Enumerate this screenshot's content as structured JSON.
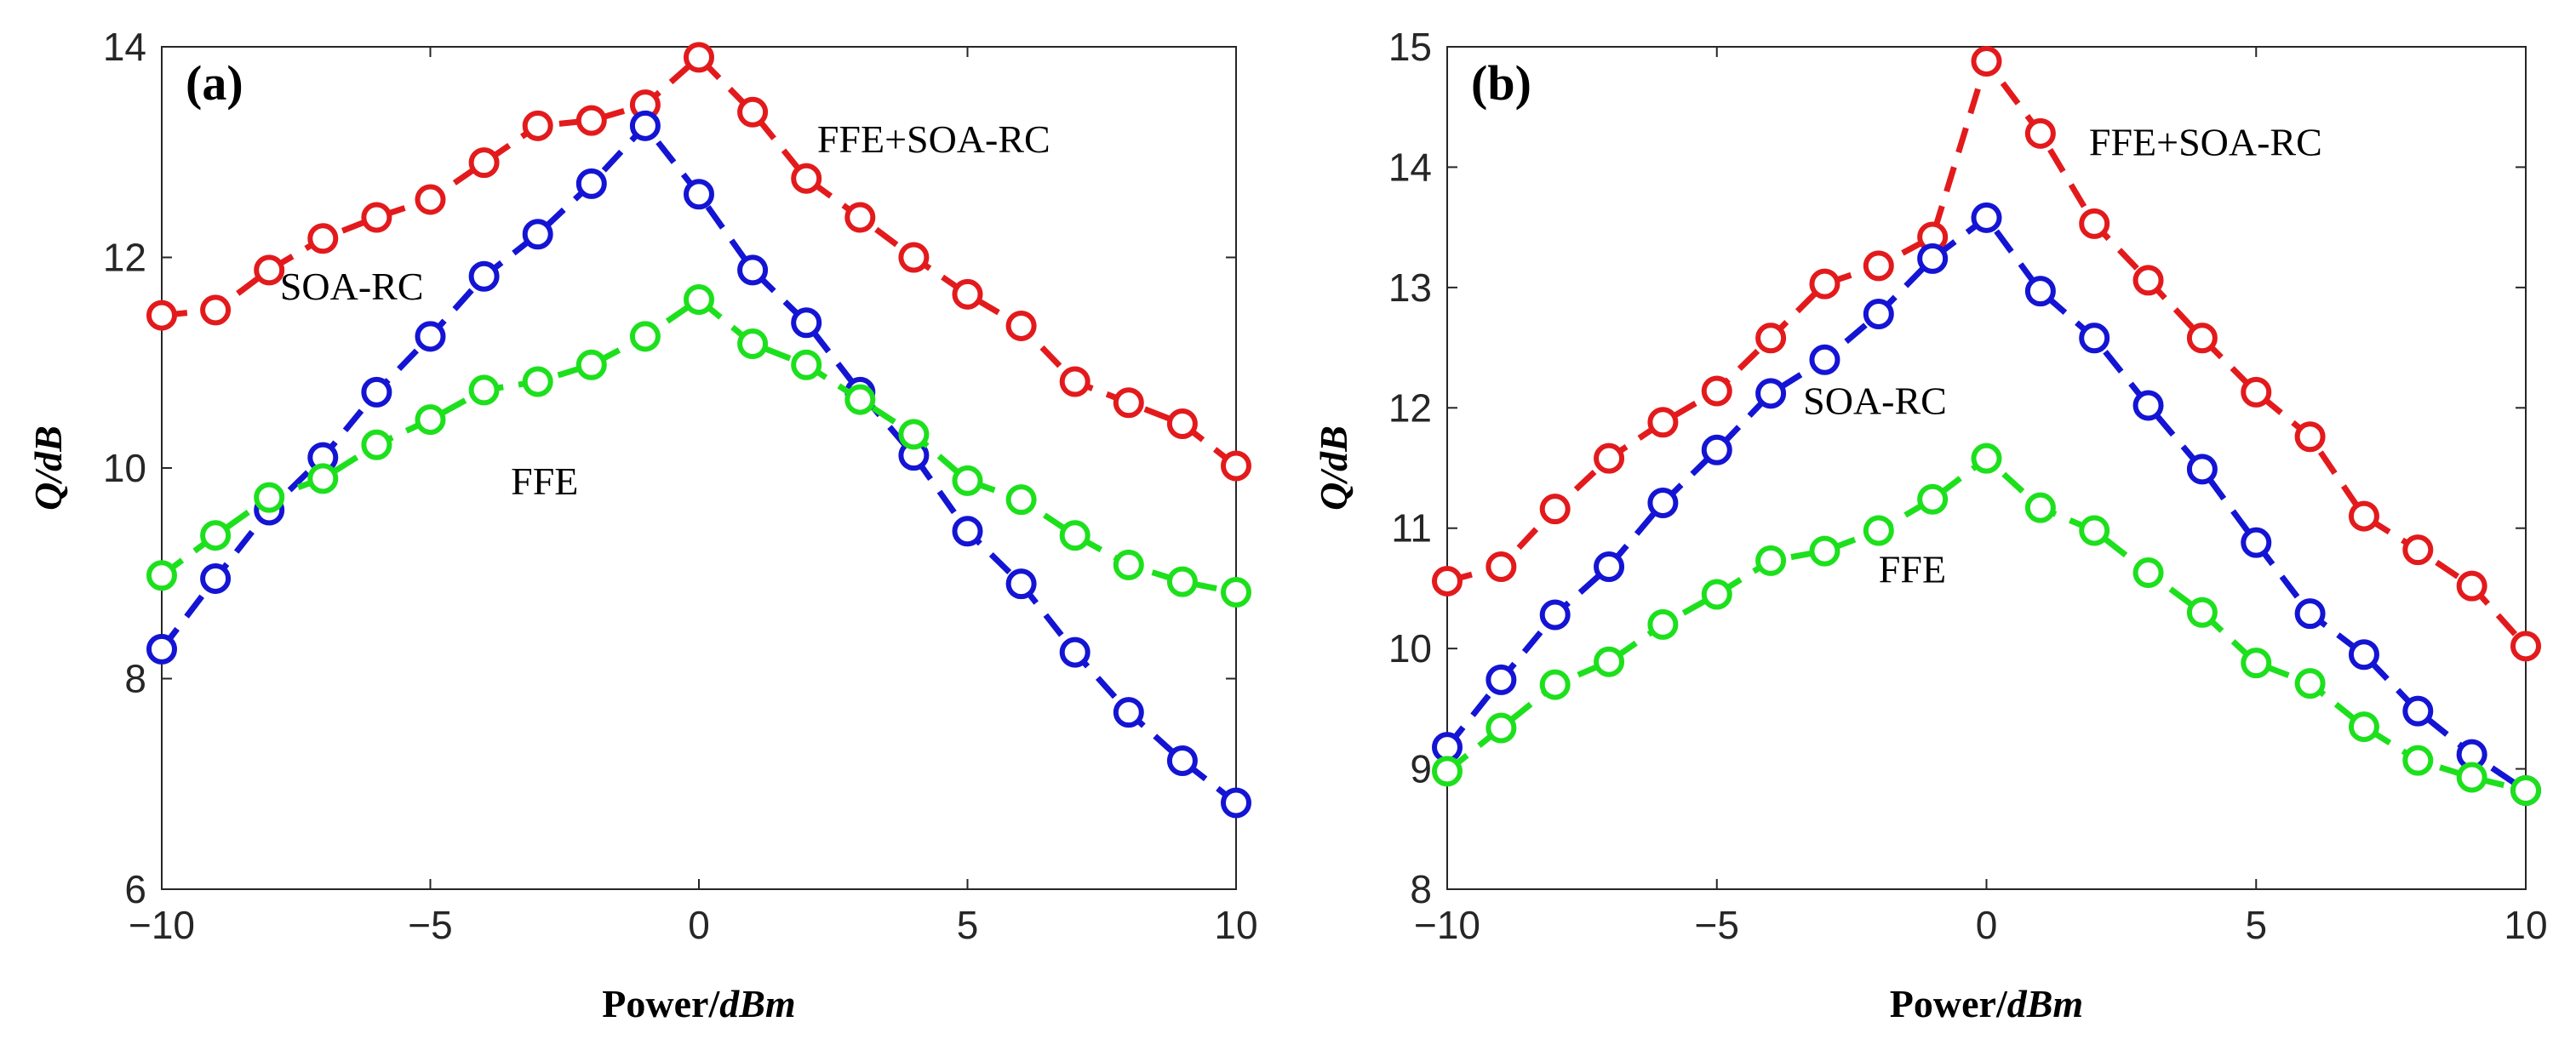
{
  "chart_data": [
    {
      "type": "line",
      "panel_label": "(a)",
      "xlabel": {
        "main": "Power/",
        "unit": "dBm"
      },
      "ylabel": {
        "main": "Q/",
        "unit": "dB"
      },
      "xlim": [
        -10,
        10
      ],
      "ylim": [
        6,
        14
      ],
      "xticks": [
        -10,
        -5,
        0,
        5,
        10
      ],
      "xtick_labels": [
        "−10",
        "−5",
        "0",
        "5",
        "10"
      ],
      "yticks": [
        6,
        8,
        10,
        12,
        14
      ],
      "ytick_labels": [
        "6",
        "8",
        "10",
        "12",
        "14"
      ],
      "x": [
        -10,
        -9,
        -8,
        -7,
        -6,
        -5,
        -4,
        -3,
        -2,
        -1,
        0,
        1,
        2,
        3,
        4,
        5,
        6,
        7,
        8,
        9,
        10
      ],
      "series": [
        {
          "name": "FFE+SOA-RC",
          "color": "#e31a1c",
          "values": [
            11.45,
            11.5,
            11.88,
            12.18,
            12.38,
            12.55,
            12.9,
            13.25,
            13.3,
            13.45,
            13.9,
            13.38,
            12.75,
            12.38,
            12.0,
            11.65,
            11.35,
            10.82,
            10.62,
            10.42,
            10.02
          ]
        },
        {
          "name": "SOA-RC",
          "color": "#1414d4",
          "values": [
            8.28,
            8.95,
            9.6,
            10.1,
            10.72,
            11.25,
            11.82,
            12.22,
            12.7,
            13.25,
            12.6,
            11.88,
            11.38,
            10.72,
            10.12,
            9.4,
            8.9,
            8.25,
            7.68,
            7.22,
            6.82
          ]
        },
        {
          "name": "FFE",
          "color": "#1de01d",
          "values": [
            8.98,
            9.36,
            9.72,
            9.9,
            10.22,
            10.46,
            10.74,
            10.82,
            10.98,
            11.25,
            11.6,
            11.18,
            10.98,
            10.65,
            10.32,
            9.88,
            9.7,
            9.36,
            9.08,
            8.92,
            8.82
          ]
        }
      ],
      "annotations": [
        {
          "text": "FFE+SOA-RC",
          "x": 2.2,
          "y": 13.0
        },
        {
          "text": "SOA-RC",
          "x": -7.8,
          "y": 11.6
        },
        {
          "text": "FFE",
          "x": -3.5,
          "y": 9.75
        }
      ]
    },
    {
      "type": "line",
      "panel_label": "(b)",
      "xlabel": {
        "main": "Power/",
        "unit": "dBm"
      },
      "ylabel": {
        "main": "Q/",
        "unit": "dB"
      },
      "xlim": [
        -10,
        10
      ],
      "ylim": [
        8,
        15
      ],
      "xticks": [
        -10,
        -5,
        0,
        5,
        10
      ],
      "xtick_labels": [
        "−10",
        "−5",
        "0",
        "5",
        "10"
      ],
      "yticks": [
        8,
        9,
        10,
        11,
        12,
        13,
        14,
        15
      ],
      "ytick_labels": [
        "8",
        "9",
        "10",
        "11",
        "12",
        "13",
        "14",
        "15"
      ],
      "x": [
        -10,
        -9,
        -8,
        -7,
        -6,
        -5,
        -4,
        -3,
        -2,
        -1,
        0,
        1,
        2,
        3,
        4,
        5,
        6,
        7,
        8,
        9,
        10
      ],
      "series": [
        {
          "name": "FFE+SOA-RC",
          "color": "#e31a1c",
          "values": [
            10.56,
            10.68,
            11.16,
            11.58,
            11.88,
            12.14,
            12.58,
            13.03,
            13.18,
            13.42,
            14.88,
            14.28,
            13.53,
            13.06,
            12.58,
            12.13,
            11.76,
            11.1,
            10.82,
            10.52,
            10.02
          ]
        },
        {
          "name": "SOA-RC",
          "color": "#1414d4",
          "values": [
            9.18,
            9.74,
            10.28,
            10.68,
            11.21,
            11.65,
            12.12,
            12.4,
            12.78,
            13.24,
            13.58,
            12.97,
            12.58,
            12.02,
            11.49,
            10.88,
            10.29,
            9.95,
            9.48,
            9.12,
            8.82
          ]
        },
        {
          "name": "FFE",
          "color": "#1de01d",
          "values": [
            8.98,
            9.34,
            9.7,
            9.89,
            10.2,
            10.45,
            10.73,
            10.81,
            10.98,
            11.24,
            11.58,
            11.17,
            10.98,
            10.63,
            10.3,
            9.88,
            9.71,
            9.35,
            9.07,
            8.93,
            8.82
          ]
        }
      ],
      "annotations": [
        {
          "text": "FFE+SOA-RC",
          "x": 1.9,
          "y": 14.1
        },
        {
          "text": "SOA-RC",
          "x": -3.4,
          "y": 11.95
        },
        {
          "text": "FFE",
          "x": -2.0,
          "y": 10.55
        }
      ]
    }
  ]
}
